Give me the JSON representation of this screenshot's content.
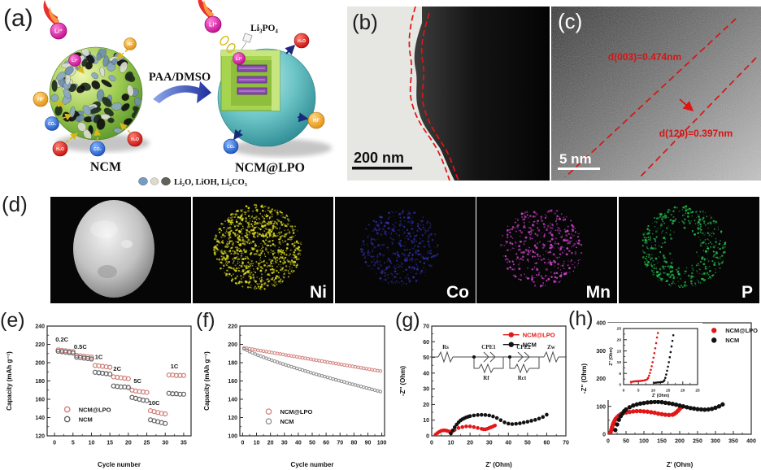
{
  "panels": {
    "a": {
      "label": "(a)",
      "ncm_label": "NCM",
      "ncm_lpo_label": "NCM@LPO",
      "arrow_label": "PAA/DMSO",
      "coating_label": "Li₃PO₄",
      "legend_text": "Li₂O, LiOH, Li₂CO₃",
      "ion_li": "Li⁺",
      "ion_hf": "HF",
      "ion_co2": "CO₂",
      "ion_h2o": "H₂O",
      "colors": {
        "li": "#d615a4",
        "hf": "#efa11c",
        "co2": "#2a62d4",
        "h2o": "#df1414",
        "ncm_sphere": "#8cc63f",
        "lpo_sphere": "#55b8bc"
      }
    },
    "b": {
      "label": "(b)",
      "scale_bar": "200 nm"
    },
    "c": {
      "label": "(c)",
      "scale_bar": "5 nm",
      "annotation_top": "d(003)=0.474nm",
      "annotation_bottom": "d(120)=0.397nm",
      "annotation_color": "#e01414"
    },
    "d": {
      "label": "(d)",
      "tiles": [
        {
          "kind": "sem",
          "label": ""
        },
        {
          "kind": "map",
          "label": "Ni",
          "color": "#d6d61e"
        },
        {
          "kind": "map",
          "label": "Co",
          "color": "#3838cc"
        },
        {
          "kind": "map",
          "label": "Mn",
          "color": "#cc42cc"
        },
        {
          "kind": "map",
          "label": "P",
          "color": "#22bb4a"
        }
      ]
    },
    "e": {
      "label": "(e)"
    },
    "f": {
      "label": "(f)"
    },
    "g": {
      "label": "(g)",
      "circuit": {
        "rs": "Rs",
        "cpe1": "CPE1",
        "rf": "Rf",
        "cpe2": "CPE2",
        "rct": "Rct",
        "zw": "Zw"
      }
    },
    "h": {
      "label": "(h)"
    }
  },
  "chart_data": [
    {
      "id": "e",
      "type": "scatter",
      "xlabel": "Cycle number",
      "ylabel": "Capacity (mAh g⁻¹)",
      "xlim": [
        -2,
        37
      ],
      "ylim": [
        120,
        240
      ],
      "xticks": [
        0,
        5,
        10,
        15,
        20,
        25,
        30,
        35
      ],
      "yticks": [
        120,
        140,
        160,
        180,
        200,
        220,
        240
      ],
      "series": [
        {
          "name": "NCM@LPO",
          "color": "#cf7d78",
          "marker": "open",
          "r": 2.5,
          "sw": 1.2,
          "x": [
            1,
            2,
            3,
            4,
            5,
            6,
            7,
            8,
            9,
            10,
            11,
            12,
            13,
            14,
            15,
            16,
            17,
            18,
            19,
            20,
            21,
            22,
            23,
            24,
            25,
            26,
            27,
            28,
            29,
            30,
            31,
            32,
            33,
            34,
            35
          ],
          "y": [
            214,
            213.5,
            213,
            212.5,
            212,
            208,
            207.5,
            207,
            206.5,
            206,
            197,
            196.5,
            196,
            195.5,
            195,
            184.5,
            184,
            183.5,
            183,
            182.5,
            170,
            169,
            168.5,
            168,
            167.5,
            147.5,
            146.5,
            145.5,
            144.5,
            144,
            186.5,
            186.5,
            186,
            186,
            186
          ]
        },
        {
          "name": "NCM",
          "color": "#5f5f5f",
          "marker": "open",
          "r": 2.5,
          "sw": 1.2,
          "x": [
            1,
            2,
            3,
            4,
            5,
            6,
            7,
            8,
            9,
            10,
            11,
            12,
            13,
            14,
            15,
            16,
            17,
            18,
            19,
            20,
            21,
            22,
            23,
            24,
            25,
            26,
            27,
            28,
            29,
            30,
            31,
            32,
            33,
            34,
            35
          ],
          "y": [
            212.5,
            212,
            211.5,
            211,
            210.5,
            206,
            205.5,
            205,
            204.5,
            204,
            189.5,
            189,
            188.5,
            188,
            187.5,
            174.5,
            174,
            173.5,
            173.5,
            173,
            162,
            161,
            160,
            159,
            158.5,
            137.5,
            136.5,
            135.5,
            134.5,
            133.5,
            166.5,
            166,
            166,
            165.5,
            165.5
          ]
        }
      ],
      "annotations": [
        {
          "text": "0.2C",
          "x": 2,
          "y": 223
        },
        {
          "text": "0.5C",
          "x": 7,
          "y": 215
        },
        {
          "text": "1C",
          "x": 12,
          "y": 204
        },
        {
          "text": "2C",
          "x": 17,
          "y": 191
        },
        {
          "text": "5C",
          "x": 22.5,
          "y": 178
        },
        {
          "text": "10C",
          "x": 27,
          "y": 154
        },
        {
          "text": "1C",
          "x": 32.5,
          "y": 194
        }
      ],
      "legend": {
        "fx": 0.1,
        "fy": 0.7,
        "line": false,
        "colored": false,
        "items": [
          "NCM@LPO",
          "NCM"
        ]
      }
    },
    {
      "id": "f",
      "type": "scatter",
      "xlabel": "Cycle number",
      "ylabel": "Capacity (mAh g⁻¹)",
      "xlim": [
        -2,
        102
      ],
      "ylim": [
        100,
        220
      ],
      "xticks": [
        0,
        10,
        20,
        30,
        40,
        50,
        60,
        70,
        80,
        90,
        100
      ],
      "yticks": [
        100,
        120,
        140,
        160,
        180,
        200,
        220
      ],
      "series": [
        {
          "name": "NCM@LPO",
          "color": "#d2837d",
          "marker": "open",
          "r": 1.7,
          "sw": 1.0,
          "x": [
            1,
            3,
            5,
            7,
            9,
            11,
            13,
            15,
            17,
            19,
            21,
            23,
            25,
            27,
            29,
            31,
            33,
            35,
            37,
            39,
            41,
            43,
            45,
            47,
            49,
            51,
            53,
            55,
            57,
            59,
            61,
            63,
            65,
            67,
            69,
            71,
            73,
            75,
            77,
            79,
            81,
            83,
            85,
            87,
            89,
            91,
            93,
            95,
            97,
            99
          ],
          "y": [
            196.2,
            195.7,
            195.2,
            194.7,
            194.2,
            193.6,
            193.1,
            192.6,
            192.1,
            191.6,
            191.0,
            190.5,
            190.0,
            189.5,
            189.0,
            188.4,
            187.9,
            187.4,
            186.9,
            186.4,
            185.8,
            185.3,
            184.8,
            184.3,
            183.8,
            183.2,
            182.7,
            182.2,
            181.7,
            181.2,
            180.6,
            180.1,
            179.6,
            179.1,
            178.6,
            178.0,
            177.5,
            177.0,
            176.5,
            176.0,
            175.4,
            174.9,
            174.4,
            173.9,
            173.4,
            172.8,
            172.3,
            171.8,
            171.3,
            170.8
          ]
        },
        {
          "name": "NCM",
          "color": "#8d8d8d",
          "marker": "open",
          "r": 1.7,
          "sw": 1.0,
          "x": [
            1,
            3,
            5,
            7,
            9,
            11,
            13,
            15,
            17,
            19,
            21,
            23,
            25,
            27,
            29,
            31,
            33,
            35,
            37,
            39,
            41,
            43,
            45,
            47,
            49,
            51,
            53,
            55,
            57,
            59,
            61,
            63,
            65,
            67,
            69,
            71,
            73,
            75,
            77,
            79,
            81,
            83,
            85,
            87,
            89,
            91,
            93,
            95,
            97,
            99
          ],
          "y": [
            195.0,
            193.6,
            192.1,
            190.7,
            189.4,
            188.2,
            187.0,
            185.9,
            184.8,
            183.7,
            182.6,
            181.6,
            180.5,
            179.5,
            178.5,
            177.5,
            176.6,
            175.6,
            174.7,
            173.7,
            172.8,
            171.9,
            170.9,
            170.0,
            169.1,
            168.2,
            167.3,
            166.4,
            165.6,
            164.7,
            163.9,
            163.0,
            162.2,
            161.3,
            160.5,
            159.7,
            158.9,
            158.0,
            157.2,
            156.4,
            155.6,
            154.8,
            154.0,
            153.2,
            152.4,
            151.6,
            150.8,
            150.0,
            149.2,
            148.4
          ]
        }
      ],
      "legend": {
        "fx": 0.16,
        "fy": 0.72,
        "line": false,
        "colored": false,
        "items": [
          "NCM@LPO",
          "NCM"
        ]
      }
    },
    {
      "id": "g",
      "type": "scatter",
      "xlabel": "Z' (Ohm)",
      "ylabel": "-Z'' (Ohm)",
      "xlim": [
        0,
        70
      ],
      "ylim": [
        0,
        70
      ],
      "xticks": [
        0,
        10,
        20,
        30,
        40,
        50,
        60,
        70
      ],
      "yticks": [
        0,
        10,
        20,
        30,
        40,
        50,
        60,
        70
      ],
      "series": [
        {
          "name": "NCM@LPO",
          "color": "#e21717",
          "marker": "filled",
          "r": 2.3,
          "x": [
            2,
            3,
            4,
            5,
            6,
            7,
            8,
            9,
            10,
            11,
            12,
            14,
            16,
            18,
            20,
            22,
            24,
            26,
            27,
            28,
            29,
            30,
            31,
            32,
            33
          ],
          "y": [
            0.8,
            1.8,
            2.6,
            3.2,
            3.5,
            3.5,
            3.2,
            2.8,
            2.6,
            3.0,
            3.8,
            5.0,
            5.6,
            6.0,
            6.0,
            5.6,
            5.0,
            4.5,
            4.2,
            4.2,
            4.5,
            5.0,
            5.5,
            6.0,
            6.6
          ]
        },
        {
          "name": "NCM",
          "color": "#111111",
          "marker": "filled",
          "r": 2.3,
          "x": [
            10,
            11,
            12,
            13,
            14,
            15,
            16,
            17,
            18,
            19,
            20,
            22,
            24,
            26,
            28,
            30,
            32,
            34,
            36,
            38,
            40,
            42,
            44,
            46,
            48,
            50,
            52,
            54,
            56,
            58,
            60
          ],
          "y": [
            1.5,
            3.5,
            5.5,
            7.2,
            8.6,
            9.8,
            10.6,
            11.2,
            11.8,
            12.2,
            12.6,
            13.0,
            13.3,
            13.4,
            13.3,
            13.0,
            12.4,
            11.4,
            10.0,
            8.6,
            7.8,
            7.5,
            7.7,
            8.0,
            8.5,
            9.0,
            9.6,
            10.2,
            11.0,
            12.0,
            13.5
          ]
        }
      ],
      "legend": {
        "fx": 0.55,
        "fy": 0.02,
        "line": true,
        "colored": true,
        "items": [
          "NCM@LPO",
          "NCM"
        ]
      }
    },
    {
      "id": "h",
      "type": "scatter",
      "xlabel": "Z' (Ohm)",
      "ylabel": "-Z'' (Ohm)",
      "xlim": [
        0,
        400
      ],
      "ylim": [
        0,
        400
      ],
      "xticks": [
        0,
        50,
        100,
        150,
        200,
        250,
        300,
        350,
        400
      ],
      "yticks": [
        0,
        100,
        200,
        300,
        400
      ],
      "series": [
        {
          "name": "NCM@LPO",
          "color": "#e21717",
          "marker": "filled",
          "r": 2.7,
          "x": [
            5,
            7,
            9,
            11,
            13,
            15,
            18,
            21,
            25,
            30,
            35,
            40,
            50,
            60,
            70,
            80,
            90,
            100,
            110,
            120,
            130,
            140,
            150,
            160,
            170,
            180,
            185,
            190,
            195,
            200,
            205
          ],
          "y": [
            1,
            8,
            16,
            25,
            33,
            40,
            48,
            55,
            61,
            67,
            71,
            74,
            78,
            80,
            82,
            83,
            83,
            82,
            81,
            79,
            77,
            74,
            72,
            70,
            69,
            70,
            73,
            78,
            84,
            91,
            97
          ]
        },
        {
          "name": "NCM",
          "color": "#111111",
          "marker": "filled",
          "r": 2.7,
          "x": [
            20,
            25,
            30,
            35,
            40,
            45,
            50,
            60,
            70,
            80,
            90,
            100,
            110,
            120,
            130,
            140,
            150,
            160,
            170,
            180,
            190,
            200,
            210,
            220,
            230,
            240,
            250,
            260,
            270,
            280,
            290,
            300,
            310,
            320
          ],
          "y": [
            15,
            35,
            52,
            65,
            75,
            83,
            89,
            97,
            103,
            107,
            110,
            112,
            114,
            115,
            116,
            116,
            115,
            113,
            111,
            109,
            106,
            103,
            100,
            97,
            94,
            92,
            90,
            89,
            88,
            89,
            91,
            95,
            100,
            107
          ]
        }
      ],
      "legend": {
        "fx": 0.7,
        "fy": 0.01,
        "line": false,
        "colored": false,
        "items": [
          "NCM@LPO",
          "NCM"
        ]
      }
    },
    {
      "id": "h_inset",
      "type": "scatter",
      "xlabel": "Z' (Ohm)",
      "ylabel": "Z'' (Ohm)",
      "xlim": [
        0,
        25
      ],
      "ylim": [
        0,
        25
      ],
      "xticks": [
        0,
        5,
        10,
        15,
        20,
        25
      ],
      "yticks": [
        0,
        5,
        10,
        15,
        20,
        25
      ],
      "series": [
        {
          "name": "NCM@LPO",
          "color": "#e21717",
          "marker": "filled",
          "r": 1.3,
          "x": [
            2.5,
            3,
            3.5,
            4,
            4.5,
            5,
            5.5,
            6,
            6.5,
            7,
            7.5,
            8,
            8.3,
            8.6,
            8.9,
            9.2,
            9.5,
            9.8,
            10.1,
            10.4,
            10.7,
            11,
            11.3,
            11.6
          ],
          "y": [
            1.2,
            1.3,
            1.4,
            1.5,
            1.5,
            1.6,
            1.6,
            1.7,
            1.8,
            1.9,
            2.1,
            2.4,
            3,
            4,
            5.2,
            6.6,
            8.2,
            10,
            12,
            14,
            16.2,
            18.5,
            21,
            23
          ]
        },
        {
          "name": "NCM",
          "color": "#111111",
          "marker": "filled",
          "r": 1.3,
          "x": [
            10.5,
            11,
            11.5,
            12,
            12.5,
            13,
            13.5,
            13.8,
            14.1,
            14.4,
            14.7,
            15,
            15.3,
            15.6,
            15.9,
            16.2,
            16.5,
            16.8
          ],
          "y": [
            0.8,
            0.9,
            1,
            1,
            1.1,
            1.2,
            1.4,
            2,
            3,
            4.5,
            6.2,
            8,
            10,
            12.2,
            14.5,
            17,
            19.5,
            22
          ]
        }
      ]
    }
  ]
}
